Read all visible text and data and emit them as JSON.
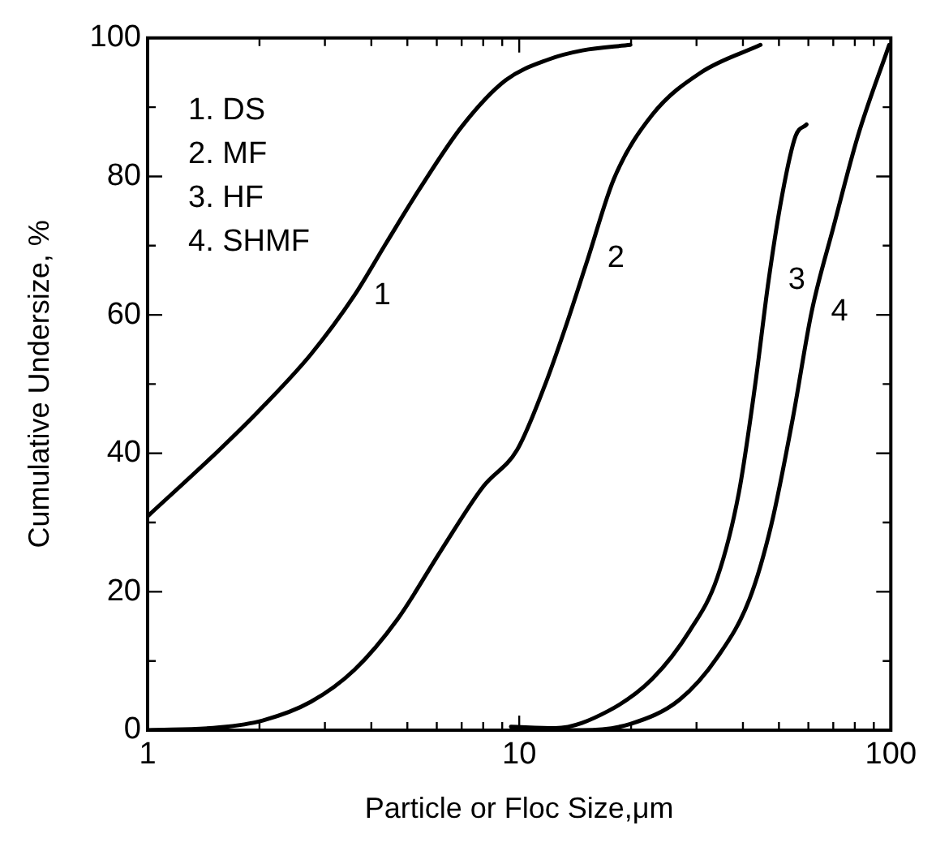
{
  "chart_data": {
    "type": "line",
    "xlabel": "Particle or Floc Size,μm",
    "ylabel": "Cumulative Undersize, %",
    "log": "x",
    "grid": false,
    "marker": "none",
    "line_style": "solid",
    "xlim": [
      1,
      100
    ],
    "ylim": [
      0,
      100
    ],
    "xticks": [
      1,
      {
        "value": 2,
        "label": null
      },
      {
        "value": 3,
        "label": null
      },
      {
        "value": 4,
        "label": null
      },
      {
        "value": 5,
        "label": null
      },
      {
        "value": 6,
        "label": null
      },
      {
        "value": 7,
        "label": null
      },
      {
        "value": 8,
        "label": null
      },
      {
        "value": 9,
        "label": null
      },
      10,
      {
        "value": 20,
        "label": null
      },
      {
        "value": 30,
        "label": null
      },
      {
        "value": 40,
        "label": null
      },
      {
        "value": 50,
        "label": null
      },
      {
        "value": 60,
        "label": null
      },
      {
        "value": 70,
        "label": null
      },
      {
        "value": 80,
        "label": null
      },
      {
        "value": 90,
        "label": null
      },
      100
    ],
    "yticks": [
      0,
      {
        "value": 10,
        "label": null
      },
      20,
      {
        "value": 30,
        "label": null
      },
      40,
      {
        "value": 50,
        "label": null
      },
      60,
      {
        "value": 70,
        "label": null
      },
      80,
      {
        "value": 90,
        "label": null
      },
      100
    ],
    "series": [
      {
        "name": "1",
        "color": "#000000",
        "x": [
          1,
          1.56,
          2.04,
          2.75,
          3.6,
          4.4,
          5.38,
          7.03,
          9.2,
          12.0,
          14.8,
          19.9
        ],
        "values": [
          30.9,
          40.5,
          46.7,
          54.3,
          62.8,
          70.5,
          78.1,
          87.3,
          93.9,
          96.9,
          98.2,
          99.0
        ]
      },
      {
        "name": "2",
        "color": "#000000",
        "x": [
          1,
          1.56,
          2.04,
          2.75,
          3.6,
          4.7,
          6.15,
          8.0,
          9.87,
          11.7,
          13.3,
          15.3,
          18.0,
          22.8,
          30.8,
          44.6
        ],
        "values": [
          0,
          0.4,
          1.4,
          4.1,
          8.7,
          16,
          25.9,
          35.2,
          40.5,
          49.7,
          58.1,
          68.1,
          79.7,
          88.9,
          95.0,
          99.0
        ]
      },
      {
        "name": "3",
        "color": "#000000",
        "x": [
          9.5,
          12.5,
          17.4,
          22.8,
          28.8,
          34.1,
          39.0,
          43.1,
          46.9,
          51.0,
          55.4,
          59.3
        ],
        "values": [
          0.5,
          0.3,
          2.8,
          7.4,
          14.4,
          22.0,
          34.3,
          49.7,
          65.0,
          77.3,
          85.8,
          87.5
        ]
      },
      {
        "name": "4",
        "color": "#000000",
        "x": [
          12,
          14.8,
          19.9,
          27.0,
          34.1,
          41.7,
          47.7,
          54.5,
          61.2,
          70.1,
          81.5,
          99.0
        ],
        "values": [
          0,
          0,
          0.9,
          4.4,
          10.5,
          19.0,
          29.7,
          45.1,
          60.4,
          72.7,
          85.8,
          99.0
        ]
      }
    ],
    "annotations": [
      "1. DS",
      "2. MF",
      "3. HF",
      "4. SHMF"
    ]
  }
}
